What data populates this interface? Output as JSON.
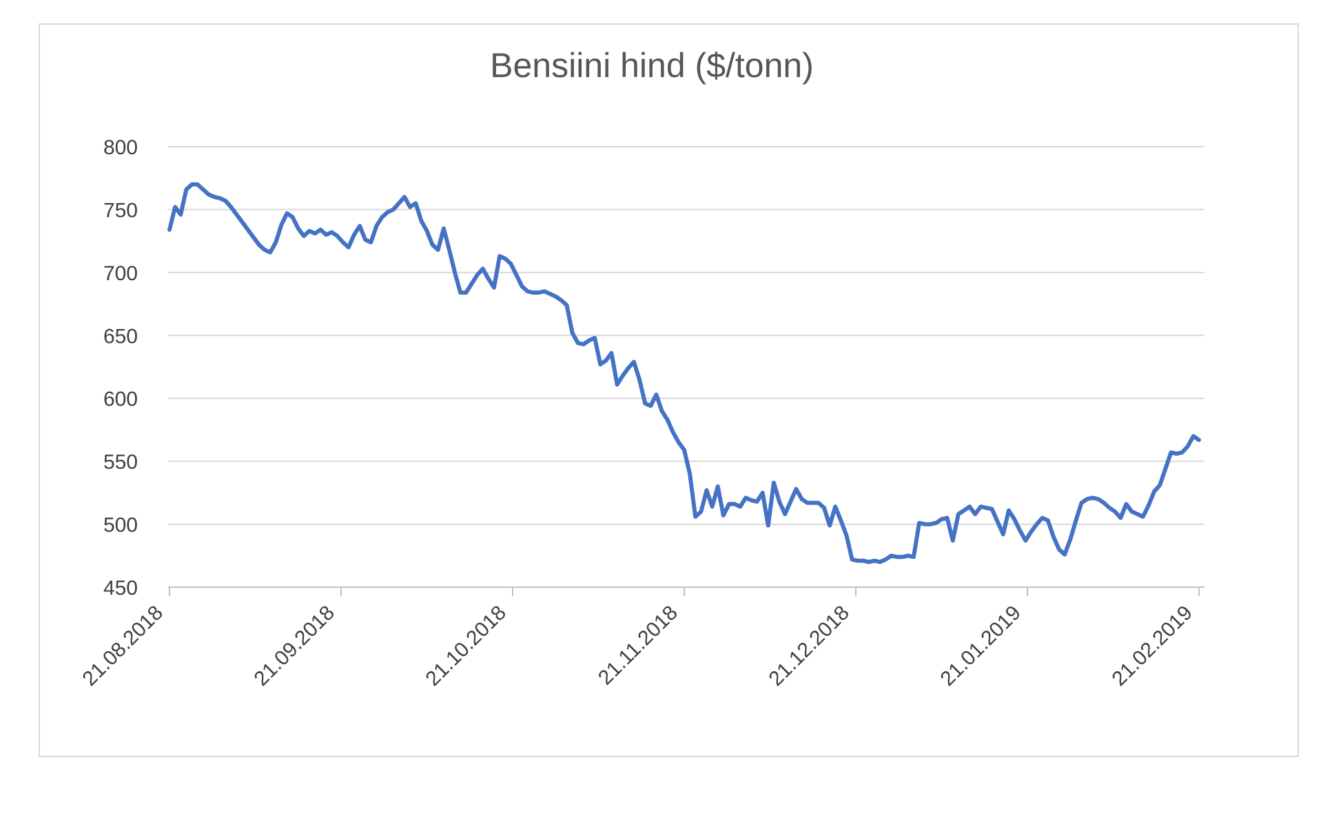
{
  "chart_data": {
    "type": "line",
    "title": "Bensiini hind ($/tonn)",
    "xlabel": "",
    "ylabel": "",
    "ylim": [
      450,
      800
    ],
    "y_ticks": [
      450,
      500,
      550,
      600,
      650,
      700,
      750,
      800
    ],
    "x_tick_labels": [
      "21.08.2018",
      "21.09.2018",
      "21.10.2018",
      "21.11.2018",
      "21.12.2018",
      "21.01.2019",
      "21.02.2019"
    ],
    "grid": "horizontal",
    "legend": "none",
    "series": [
      {
        "values": [
          734,
          752,
          746,
          766,
          770,
          770,
          766,
          762,
          760,
          759,
          757,
          752,
          746,
          740,
          734,
          728,
          722,
          718,
          716,
          724,
          738,
          747,
          744,
          735,
          729,
          733,
          731,
          734,
          730,
          732,
          729,
          724,
          720,
          730,
          737,
          726,
          724,
          737,
          744,
          748,
          750,
          755,
          760,
          752,
          755,
          741,
          733,
          722,
          718,
          735,
          718,
          700,
          684,
          684,
          691,
          698,
          703,
          695,
          688,
          713,
          711,
          707,
          698,
          689,
          685,
          684,
          684,
          685,
          683,
          681,
          678,
          674,
          652,
          644,
          643,
          646,
          648,
          627,
          630,
          636,
          611,
          618,
          624,
          629,
          615,
          596,
          594,
          603,
          590,
          583,
          573,
          565,
          559,
          540,
          506,
          510,
          527,
          514,
          530,
          507,
          516,
          516,
          514,
          521,
          519,
          518,
          525,
          499,
          533,
          518,
          508,
          518,
          528,
          520,
          517,
          517,
          517,
          513,
          499,
          514,
          503,
          491,
          472,
          471,
          471,
          470,
          471,
          470,
          472,
          475,
          474,
          474,
          475,
          474,
          501,
          500,
          500,
          501,
          504,
          505,
          487,
          508,
          511,
          514,
          508,
          514,
          513,
          512,
          502,
          492,
          511,
          504,
          495,
          487,
          494,
          500,
          505,
          503,
          490,
          480,
          476,
          488,
          503,
          517,
          520,
          521,
          520,
          517,
          513,
          510,
          505,
          516,
          510,
          508,
          506,
          515,
          526,
          531,
          544,
          557,
          556,
          557,
          562,
          570,
          567
        ]
      }
    ],
    "colors": {
      "line": "#4472C4",
      "grid": "#D9D9D9",
      "axis": "#BFBFBF",
      "tick_labels": "#3F3F3F",
      "title": "#565656",
      "frame_border": "#D9D9D9",
      "background": "#FFFFFF"
    },
    "line_width": 6
  }
}
